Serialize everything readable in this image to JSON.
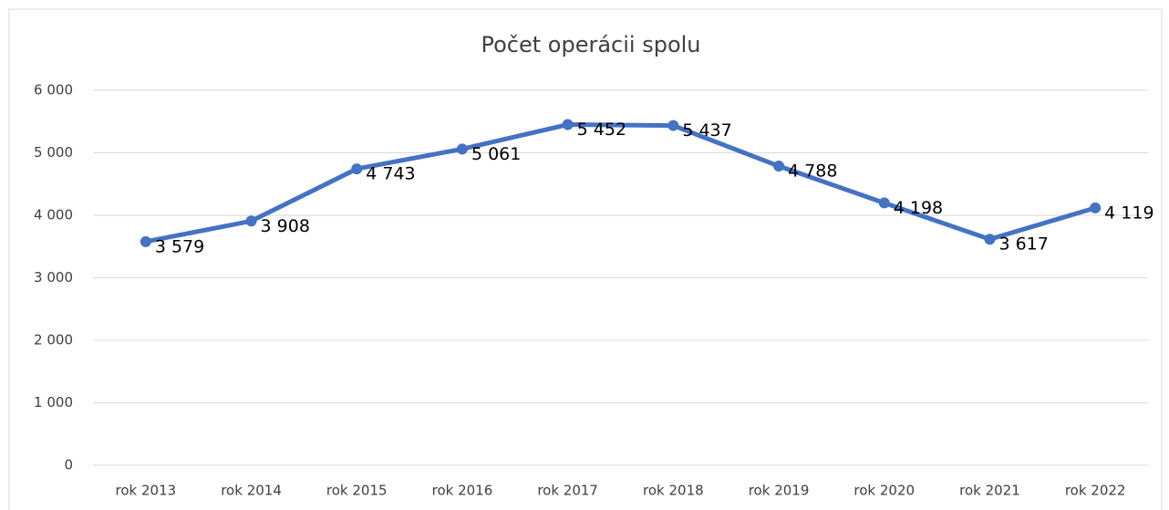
{
  "chart_data": {
    "type": "line",
    "title": "Počet operácii spolu",
    "categories": [
      "rok 2013",
      "rok 2014",
      "rok 2015",
      "rok 2016",
      "rok 2017",
      "rok 2018",
      "rok 2019",
      "rok 2020",
      "rok 2021",
      "rok 2022"
    ],
    "series": [
      {
        "name": "Počet operácii spolu",
        "color": "#4472c4",
        "values": [
          3579,
          3908,
          4743,
          5061,
          5452,
          5437,
          4788,
          4198,
          3617,
          4119
        ],
        "value_labels": [
          "3 579",
          "3 908",
          "4 743",
          "5 061",
          "5 452",
          "5 437",
          "4 788",
          "4 198",
          "3 617",
          "4 119"
        ]
      }
    ],
    "ylim": [
      0,
      6000
    ],
    "yticks": [
      0,
      {
        "value": 1000,
        "label": "1 000"
      },
      {
        "value": 2000,
        "label": "2 000"
      },
      {
        "value": 3000,
        "label": "3 000"
      },
      {
        "value": 4000,
        "label": "4 000"
      },
      {
        "value": 5000,
        "label": "5 000"
      },
      {
        "value": 6000,
        "label": "6 000"
      }
    ],
    "grid": true
  }
}
